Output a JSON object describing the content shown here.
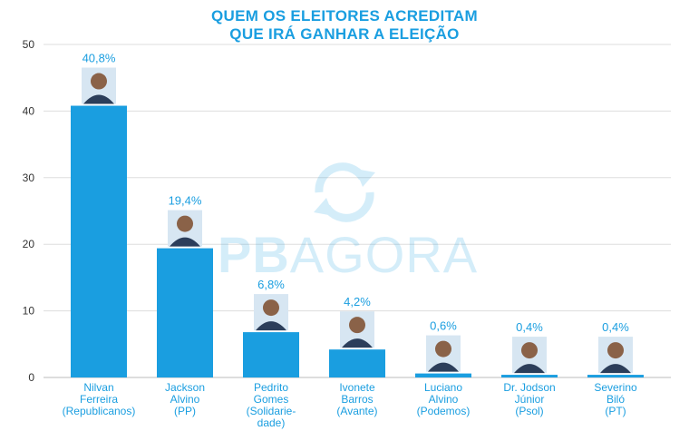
{
  "title_line1": "QUEM OS ELEITORES ACREDITAM",
  "title_line2": "QUE IRÁ GANHAR A ELEIÇÃO",
  "watermark": {
    "part1": "PB",
    "part2": "AGORA"
  },
  "colors": {
    "bar": "#1a9ee0",
    "title": "#1a9ee0",
    "grid": "#dddddd"
  },
  "chart_data": {
    "type": "bar",
    "grid": true,
    "ylim": [
      0,
      50
    ],
    "yticks": [
      0,
      10,
      20,
      30,
      40,
      50
    ],
    "categories": [
      [
        "Nilvan",
        "Ferreira",
        "(Republicanos)"
      ],
      [
        "Jackson",
        "Alvino",
        "(PP)"
      ],
      [
        "Pedrito",
        "Gomes",
        "(Solidarie-",
        "dade)"
      ],
      [
        "Ivonete",
        "Barros",
        "(Avante)"
      ],
      [
        "Luciano",
        "Alvino",
        "(Podemos)"
      ],
      [
        "Dr. Jodson",
        "Júnior",
        "(Psol)"
      ],
      [
        "Severino",
        "Biló",
        "(PT)"
      ]
    ],
    "values": [
      40.8,
      19.4,
      6.8,
      4.2,
      0.6,
      0.4,
      0.4
    ],
    "data_labels": [
      "40,8%",
      "19,4%",
      "6,8%",
      "4,2%",
      "0,6%",
      "0,4%",
      "0,4%"
    ]
  }
}
